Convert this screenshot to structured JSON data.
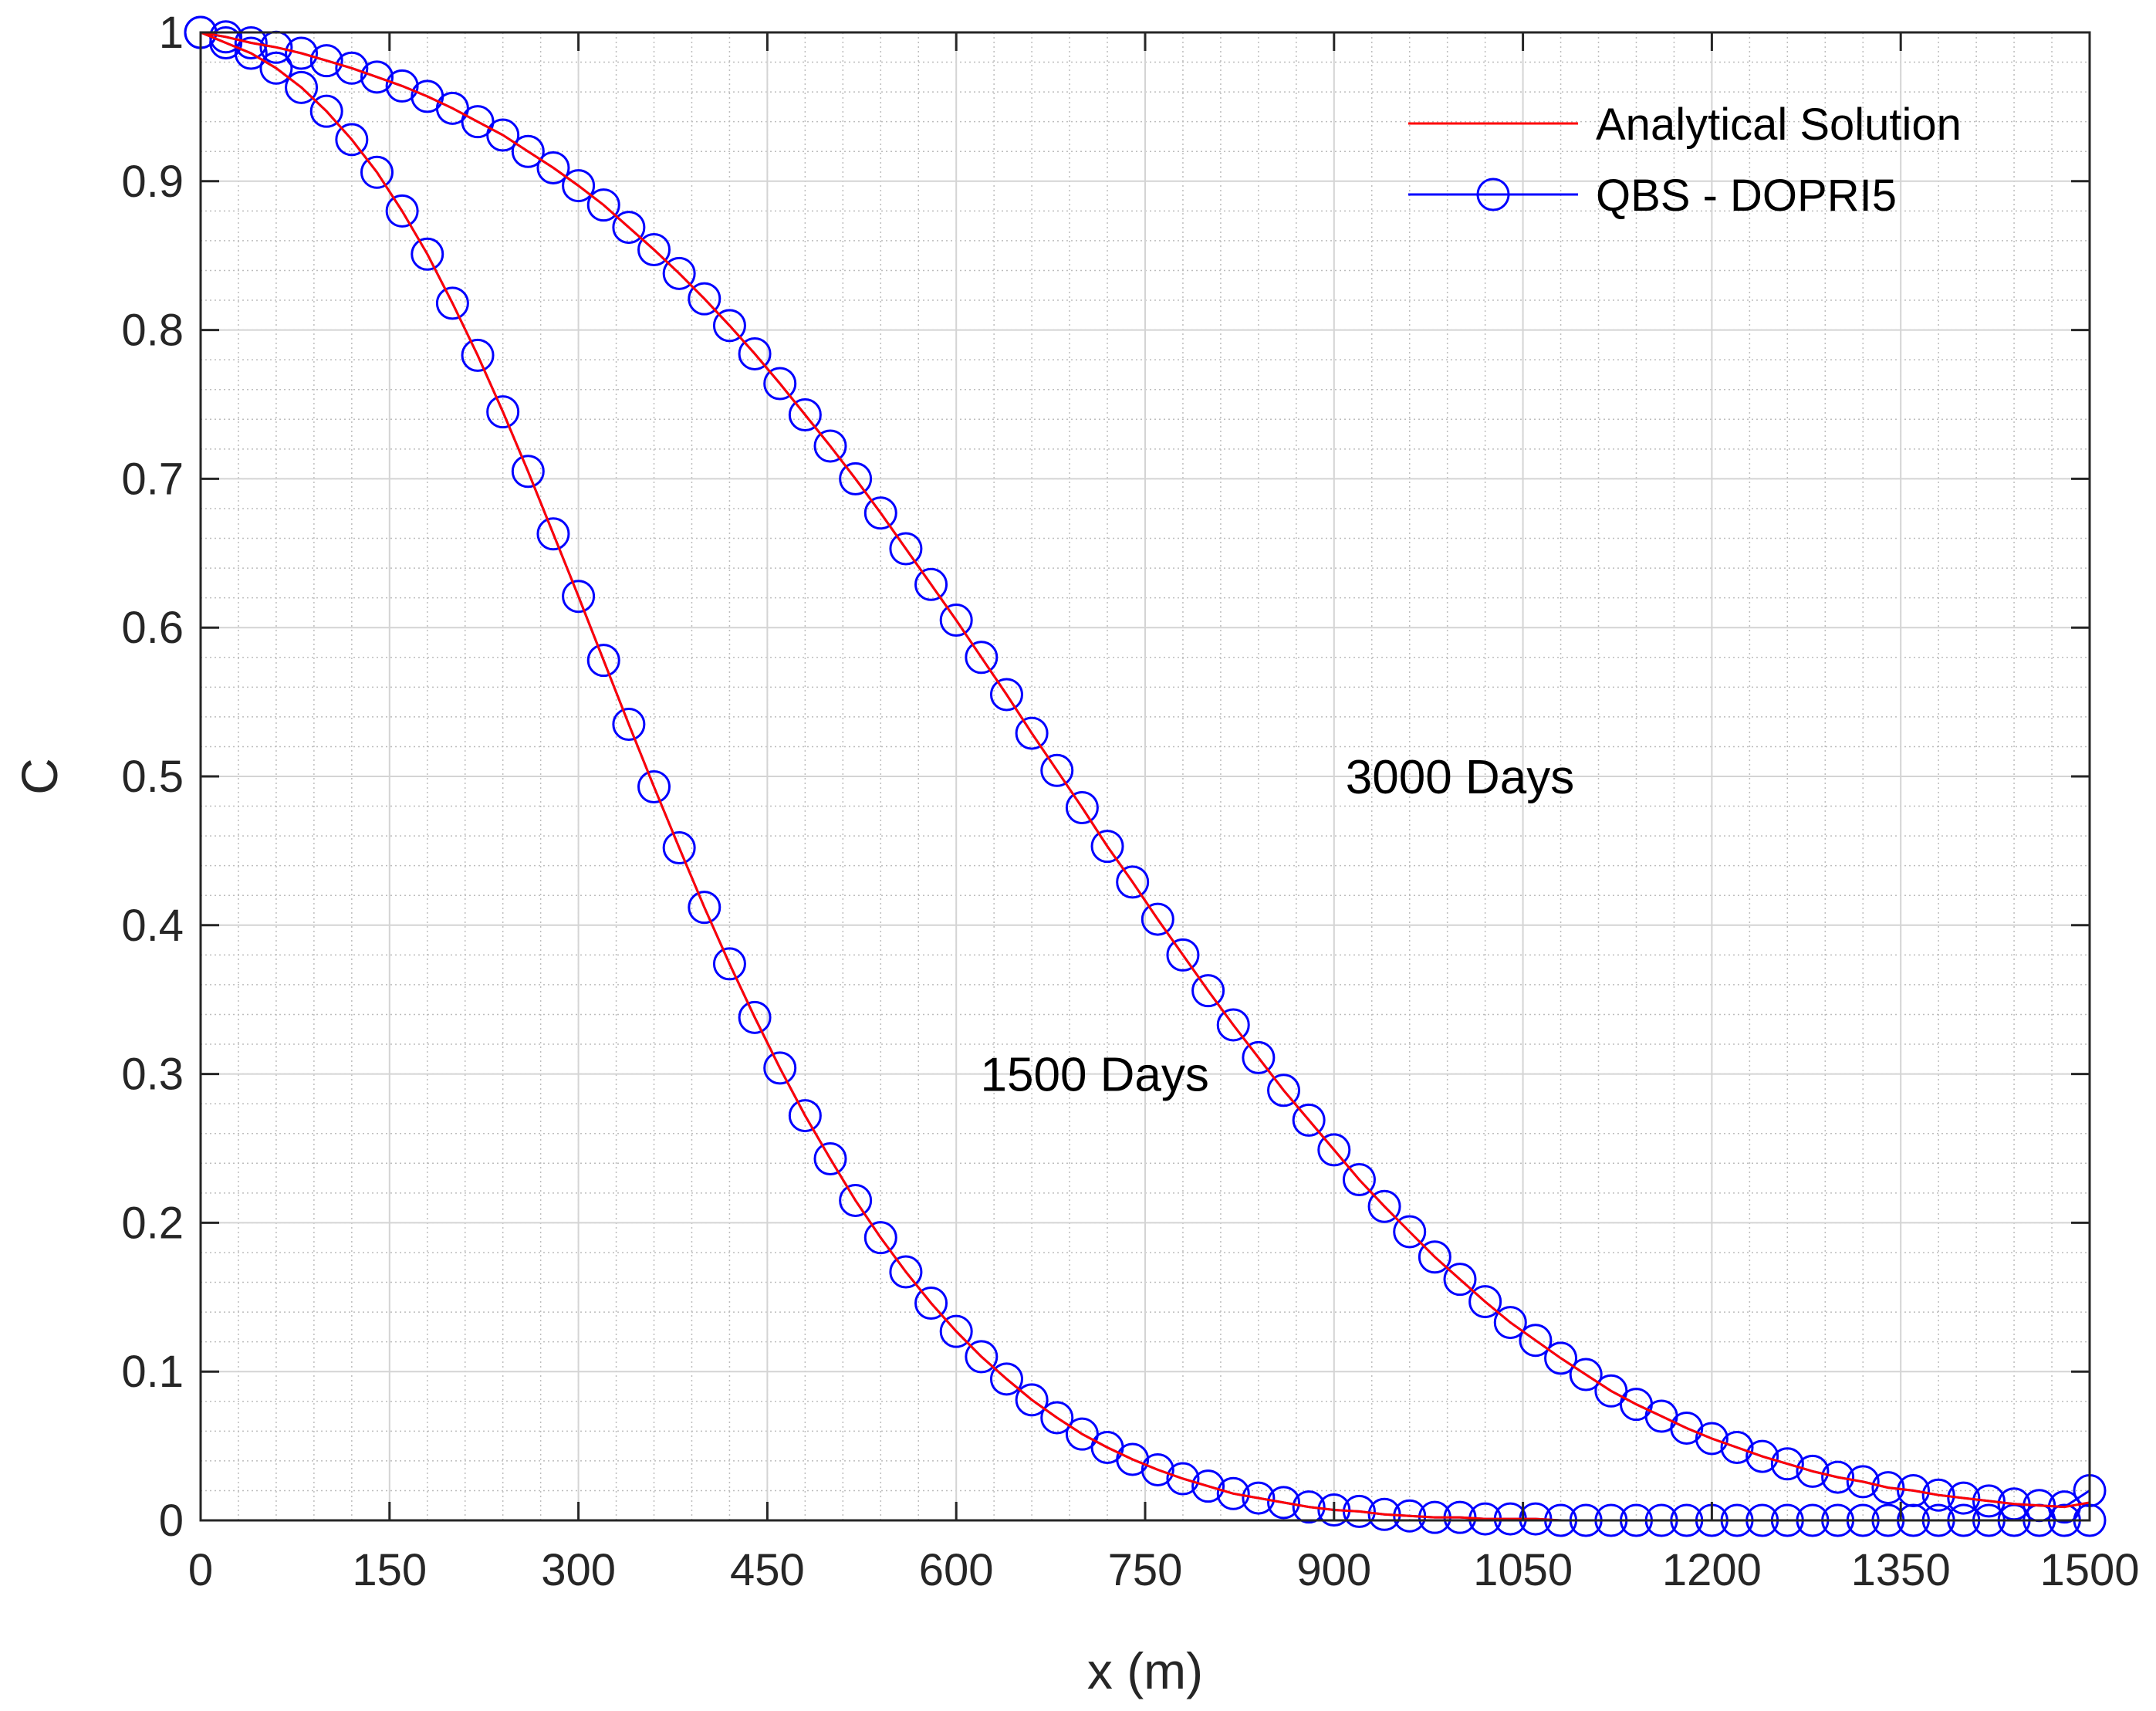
{
  "chart_data": {
    "type": "line",
    "title": "",
    "xlabel": "x (m)",
    "ylabel": "C",
    "xlim": [
      0,
      1500
    ],
    "ylim": [
      0,
      1
    ],
    "xticks": [
      0,
      150,
      300,
      450,
      600,
      750,
      900,
      1050,
      1200,
      1350,
      1500
    ],
    "yticks": [
      0,
      0.1,
      0.2,
      0.3,
      0.4,
      0.5,
      0.6,
      0.7,
      0.8,
      0.9,
      1
    ],
    "xtick_labels": [
      "0",
      "150",
      "300",
      "450",
      "600",
      "750",
      "900",
      "1050",
      "1200",
      "1350",
      "1500"
    ],
    "ytick_labels": [
      "0",
      "0.1",
      "0.2",
      "0.3",
      "0.4",
      "0.5",
      "0.6",
      "0.7",
      "0.8",
      "0.9",
      "1"
    ],
    "grid": true,
    "minor_grid": true,
    "legend_position": "top-right",
    "legend": [
      "Analytical Solution",
      "QBS - DOPRI5"
    ],
    "annotations": [
      {
        "text": "3000 Days",
        "x": 1000,
        "y": 0.5
      },
      {
        "text": "1500 Days",
        "x": 710,
        "y": 0.3
      }
    ],
    "series": [
      {
        "name": "Analytical Solution",
        "kind": "line",
        "color": "#ff0000",
        "curves": [
          {
            "label": "1500 Days",
            "x": [
              0,
              20,
              40,
              60,
              80,
              100,
              120,
              140,
              160,
              180,
              200,
              220,
              240,
              260,
              280,
              300,
              320,
              340,
              360,
              380,
              400,
              420,
              440,
              460,
              480,
              500,
              520,
              540,
              560,
              580,
              600,
              620,
              640,
              660,
              680,
              700,
              720,
              740,
              760,
              780,
              800,
              820,
              840,
              860,
              880,
              900,
              920,
              940,
              960,
              980,
              1000,
              1020,
              1040,
              1060,
              1080,
              1100,
              1120,
              1140,
              1160,
              1180,
              1200,
              1220,
              1240,
              1260,
              1280,
              1300,
              1320,
              1340,
              1360,
              1380,
              1400,
              1420,
              1440,
              1460,
              1480,
              1500
            ],
            "y": [
              1.0,
              0.993,
              0.986,
              0.976,
              0.963,
              0.947,
              0.928,
              0.906,
              0.88,
              0.851,
              0.818,
              0.783,
              0.745,
              0.705,
              0.663,
              0.621,
              0.578,
              0.535,
              0.493,
              0.452,
              0.412,
              0.374,
              0.338,
              0.304,
              0.272,
              0.243,
              0.215,
              0.19,
              0.167,
              0.146,
              0.127,
              0.11,
              0.095,
              0.081,
              0.069,
              0.058,
              0.049,
              0.041,
              0.034,
              0.028,
              0.023,
              0.018,
              0.015,
              0.012,
              0.009,
              0.007,
              0.006,
              0.004,
              0.003,
              0.002,
              0.002,
              0.001,
              0.001,
              0.001,
              0.0,
              0.0,
              0.0,
              0.0,
              0.0,
              0.0,
              0.0,
              0.0,
              0.0,
              0.0,
              0.0,
              0.0,
              0.0,
              0.0,
              0.0,
              0.0,
              0.0,
              0.0,
              0.0,
              0.0,
              0.0,
              0.0
            ]
          },
          {
            "label": "3000 Days",
            "x": [
              0,
              20,
              40,
              60,
              80,
              100,
              120,
              140,
              160,
              180,
              200,
              220,
              240,
              260,
              280,
              300,
              320,
              340,
              360,
              380,
              400,
              420,
              440,
              460,
              480,
              500,
              520,
              540,
              560,
              580,
              600,
              620,
              640,
              660,
              680,
              700,
              720,
              740,
              760,
              780,
              800,
              820,
              840,
              860,
              880,
              900,
              920,
              940,
              960,
              980,
              1000,
              1020,
              1040,
              1060,
              1080,
              1100,
              1120,
              1140,
              1160,
              1180,
              1200,
              1220,
              1240,
              1260,
              1280,
              1300,
              1320,
              1340,
              1360,
              1380,
              1400,
              1420,
              1440,
              1460,
              1480,
              1500
            ],
            "y": [
              1.0,
              0.997,
              0.993,
              0.99,
              0.986,
              0.981,
              0.976,
              0.97,
              0.964,
              0.957,
              0.949,
              0.94,
              0.931,
              0.92,
              0.909,
              0.897,
              0.884,
              0.869,
              0.854,
              0.838,
              0.821,
              0.803,
              0.784,
              0.764,
              0.743,
              0.722,
              0.7,
              0.677,
              0.653,
              0.629,
              0.605,
              0.58,
              0.555,
              0.529,
              0.504,
              0.479,
              0.453,
              0.429,
              0.404,
              0.38,
              0.356,
              0.333,
              0.311,
              0.289,
              0.269,
              0.249,
              0.229,
              0.211,
              0.194,
              0.177,
              0.162,
              0.147,
              0.133,
              0.121,
              0.109,
              0.098,
              0.087,
              0.078,
              0.07,
              0.062,
              0.055,
              0.049,
              0.043,
              0.038,
              0.033,
              0.029,
              0.026,
              0.022,
              0.02,
              0.017,
              0.015,
              0.013,
              0.011,
              0.01,
              0.009,
              0.012
            ]
          }
        ]
      },
      {
        "name": "QBS - DOPRI5",
        "kind": "markers-line",
        "color": "#0000ff",
        "marker": "circle",
        "curves": [
          {
            "label": "1500 Days",
            "x": [
              0,
              20,
              40,
              60,
              80,
              100,
              120,
              140,
              160,
              180,
              200,
              220,
              240,
              260,
              280,
              300,
              320,
              340,
              360,
              380,
              400,
              420,
              440,
              460,
              480,
              500,
              520,
              540,
              560,
              580,
              600,
              620,
              640,
              660,
              680,
              700,
              720,
              740,
              760,
              780,
              800,
              820,
              840,
              860,
              880,
              900,
              920,
              940,
              960,
              980,
              1000,
              1020,
              1040,
              1060,
              1080,
              1100,
              1120,
              1140,
              1160,
              1180,
              1200,
              1220,
              1240,
              1260,
              1280,
              1300,
              1320,
              1340,
              1360,
              1380,
              1400,
              1420,
              1440,
              1460,
              1480,
              1500
            ],
            "y": [
              1.0,
              0.993,
              0.986,
              0.976,
              0.963,
              0.947,
              0.928,
              0.906,
              0.88,
              0.851,
              0.818,
              0.783,
              0.745,
              0.705,
              0.663,
              0.621,
              0.578,
              0.535,
              0.493,
              0.452,
              0.412,
              0.374,
              0.338,
              0.304,
              0.272,
              0.243,
              0.215,
              0.19,
              0.167,
              0.146,
              0.127,
              0.11,
              0.095,
              0.081,
              0.069,
              0.058,
              0.049,
              0.041,
              0.034,
              0.028,
              0.023,
              0.018,
              0.015,
              0.012,
              0.009,
              0.007,
              0.006,
              0.004,
              0.003,
              0.002,
              0.002,
              0.001,
              0.001,
              0.001,
              0.0,
              0.0,
              0.0,
              0.0,
              0.0,
              0.0,
              0.0,
              0.0,
              0.0,
              0.0,
              0.0,
              0.0,
              0.0,
              0.0,
              0.0,
              0.0,
              0.0,
              0.0,
              0.0,
              0.0,
              0.0,
              0.0
            ]
          },
          {
            "label": "3000 Days",
            "x": [
              0,
              20,
              40,
              60,
              80,
              100,
              120,
              140,
              160,
              180,
              200,
              220,
              240,
              260,
              280,
              300,
              320,
              340,
              360,
              380,
              400,
              420,
              440,
              460,
              480,
              500,
              520,
              540,
              560,
              580,
              600,
              620,
              640,
              660,
              680,
              700,
              720,
              740,
              760,
              780,
              800,
              820,
              840,
              860,
              880,
              900,
              920,
              940,
              960,
              980,
              1000,
              1020,
              1040,
              1060,
              1080,
              1100,
              1120,
              1140,
              1160,
              1180,
              1200,
              1220,
              1240,
              1260,
              1280,
              1300,
              1320,
              1340,
              1360,
              1380,
              1400,
              1420,
              1440,
              1460,
              1480,
              1500
            ],
            "y": [
              1.0,
              0.997,
              0.993,
              0.99,
              0.986,
              0.981,
              0.976,
              0.97,
              0.964,
              0.957,
              0.949,
              0.94,
              0.931,
              0.92,
              0.909,
              0.897,
              0.884,
              0.869,
              0.854,
              0.838,
              0.821,
              0.803,
              0.784,
              0.764,
              0.743,
              0.722,
              0.7,
              0.677,
              0.653,
              0.629,
              0.605,
              0.58,
              0.555,
              0.529,
              0.504,
              0.479,
              0.453,
              0.429,
              0.404,
              0.38,
              0.356,
              0.333,
              0.311,
              0.289,
              0.269,
              0.249,
              0.229,
              0.211,
              0.194,
              0.177,
              0.162,
              0.147,
              0.133,
              0.121,
              0.109,
              0.098,
              0.087,
              0.078,
              0.07,
              0.062,
              0.055,
              0.049,
              0.043,
              0.038,
              0.033,
              0.029,
              0.026,
              0.022,
              0.02,
              0.017,
              0.015,
              0.013,
              0.011,
              0.01,
              0.009,
              0.02
            ]
          }
        ]
      }
    ]
  }
}
